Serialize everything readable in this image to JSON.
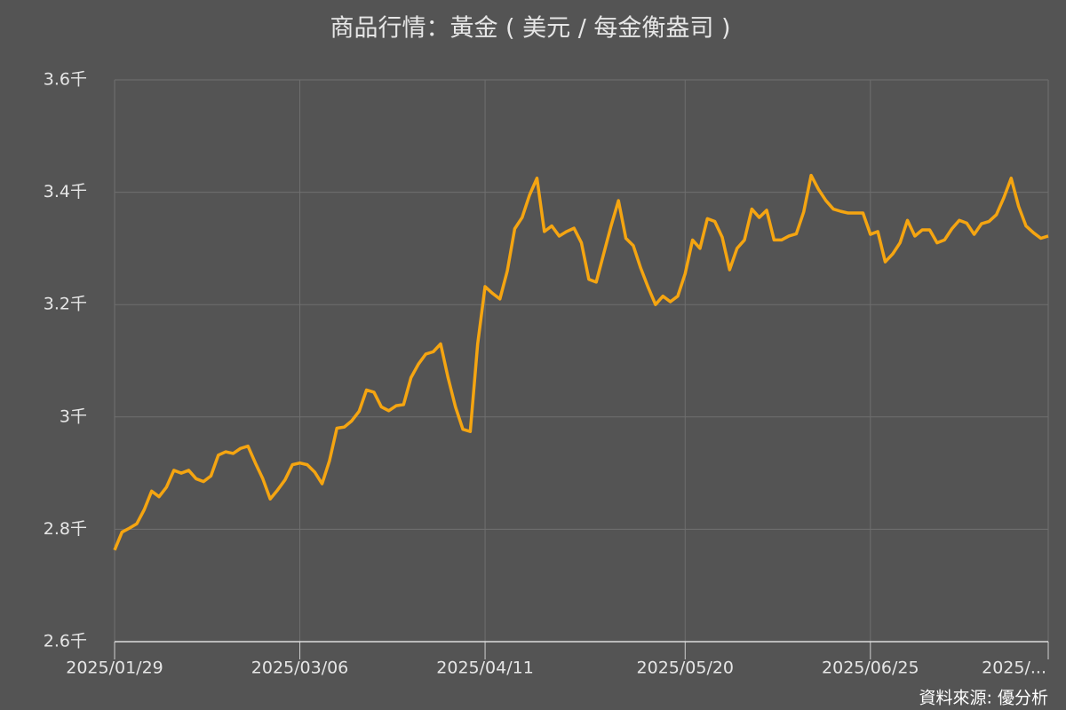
{
  "chart_data": {
    "type": "line",
    "title": "商品行情：黃金 ( 美元 / 每金衡盎司 )",
    "source": "資料來源: 優分析",
    "color": "#f5a511",
    "grid": true,
    "ylim": [
      2600,
      3600
    ],
    "yticks": [
      {
        "value": 2600,
        "label": "2.6千"
      },
      {
        "value": 2800,
        "label": "2.8千"
      },
      {
        "value": 3000,
        "label": "3千"
      },
      {
        "value": 3200,
        "label": "3.2千"
      },
      {
        "value": 3400,
        "label": "3.4千"
      },
      {
        "value": 3600,
        "label": "3.6千"
      }
    ],
    "categories": [
      "2025/01/29",
      null,
      null,
      null,
      null,
      null,
      null,
      null,
      null,
      null,
      null,
      null,
      null,
      null,
      null,
      null,
      null,
      null,
      null,
      null,
      null,
      null,
      null,
      null,
      null,
      "2025/03/06",
      null,
      null,
      null,
      null,
      null,
      null,
      null,
      null,
      null,
      null,
      null,
      null,
      null,
      null,
      null,
      null,
      null,
      null,
      null,
      null,
      null,
      null,
      null,
      null,
      "2025/04/11",
      null,
      null,
      null,
      null,
      null,
      null,
      null,
      null,
      null,
      null,
      null,
      null,
      null,
      null,
      null,
      null,
      null,
      null,
      null,
      null,
      null,
      null,
      null,
      null,
      null,
      null,
      "2025/05/20",
      null,
      null,
      null,
      null,
      null,
      null,
      null,
      null,
      null,
      null,
      null,
      null,
      null,
      null,
      null,
      null,
      null,
      null,
      null,
      null,
      null,
      null,
      null,
      null,
      "2025/06/25",
      null,
      null,
      null,
      null,
      null,
      null,
      null,
      null,
      null,
      null,
      null,
      null,
      null,
      null,
      null,
      null,
      null,
      null,
      null,
      null,
      null,
      null,
      null,
      "2025/..."
    ],
    "values": [
      2763,
      2795,
      2802,
      2810,
      2835,
      2868,
      2858,
      2875,
      2905,
      2900,
      2905,
      2890,
      2885,
      2895,
      2932,
      2938,
      2935,
      2944,
      2948,
      2918,
      2890,
      2854,
      2870,
      2888,
      2915,
      2918,
      2915,
      2902,
      2881,
      2922,
      2980,
      2982,
      2993,
      3010,
      3048,
      3044,
      3018,
      3011,
      3020,
      3022,
      3070,
      3094,
      3112,
      3116,
      3130,
      3070,
      3018,
      2978,
      2974,
      3130,
      3232,
      3220,
      3210,
      3260,
      3335,
      3355,
      3395,
      3425,
      3330,
      3340,
      3322,
      3330,
      3336,
      3310,
      3245,
      3240,
      3290,
      3340,
      3385,
      3318,
      3305,
      3265,
      3231,
      3200,
      3215,
      3205,
      3215,
      3255,
      3315,
      3300,
      3353,
      3348,
      3320,
      3262,
      3300,
      3315,
      3370,
      3355,
      3368,
      3315,
      3315,
      3322,
      3326,
      3365,
      3430,
      3405,
      3385,
      3370,
      3366,
      3363,
      3363,
      3363,
      3325,
      3330,
      3276,
      3290,
      3310,
      3350,
      3322,
      3333,
      3333,
      3310,
      3315,
      3335,
      3350,
      3345,
      3325,
      3344,
      3348,
      3360,
      3390,
      3425,
      3375,
      3340,
      3328,
      3318,
      3322
    ]
  }
}
